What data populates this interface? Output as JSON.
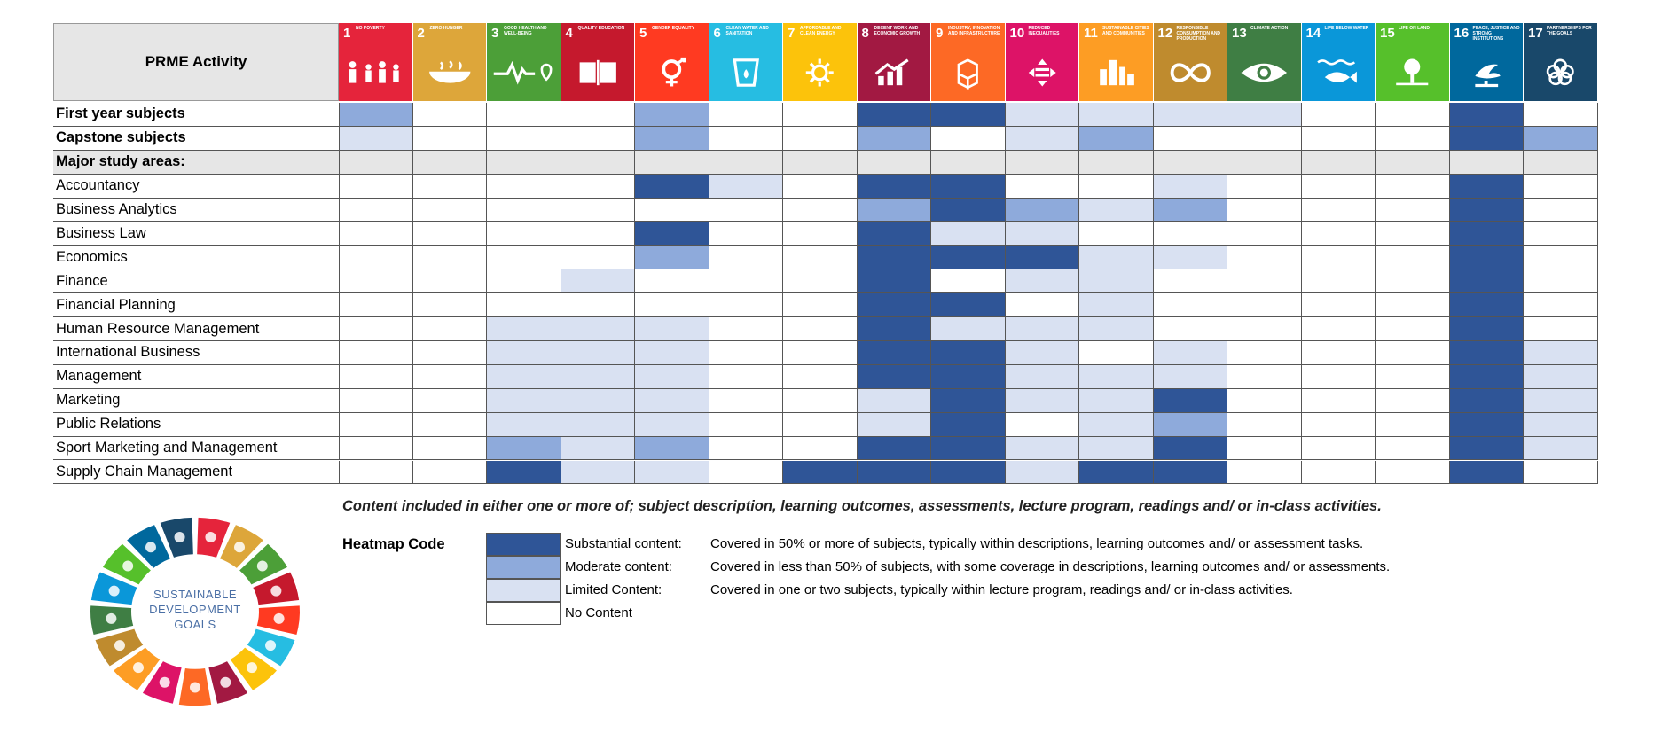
{
  "table": {
    "header_label": "PRME Activity"
  },
  "sdgs": [
    {
      "num": "1",
      "name": "No Poverty",
      "color": "#e5243b",
      "icon": "people-icon"
    },
    {
      "num": "2",
      "name": "Zero Hunger",
      "color": "#dda63a",
      "icon": "bowl-icon"
    },
    {
      "num": "3",
      "name": "Good Health and Well-being",
      "color": "#4c9f38",
      "icon": "heartbeat-icon"
    },
    {
      "num": "4",
      "name": "Quality Education",
      "color": "#c5192d",
      "icon": "book-icon"
    },
    {
      "num": "5",
      "name": "Gender Equality",
      "color": "#ff3a21",
      "icon": "gender-icon"
    },
    {
      "num": "6",
      "name": "Clean Water and Sanitation",
      "color": "#26bde2",
      "icon": "water-glass-icon"
    },
    {
      "num": "7",
      "name": "Affordable and Clean Energy",
      "color": "#fcc30b",
      "icon": "sun-icon"
    },
    {
      "num": "8",
      "name": "Decent Work and Economic Growth",
      "color": "#a21942",
      "icon": "growth-chart-icon"
    },
    {
      "num": "9",
      "name": "Industry, Innovation and Infrastructure",
      "color": "#fd6925",
      "icon": "cubes-icon"
    },
    {
      "num": "10",
      "name": "Reduced Inequalities",
      "color": "#dd1367",
      "icon": "equality-icon"
    },
    {
      "num": "11",
      "name": "Sustainable Cities and Communities",
      "color": "#fd9d24",
      "icon": "city-icon"
    },
    {
      "num": "12",
      "name": "Responsible Consumption and Production",
      "color": "#bf8b2e",
      "icon": "infinity-icon"
    },
    {
      "num": "13",
      "name": "Climate Action",
      "color": "#3f7e44",
      "icon": "eye-globe-icon"
    },
    {
      "num": "14",
      "name": "Life Below Water",
      "color": "#0a97d9",
      "icon": "fish-icon"
    },
    {
      "num": "15",
      "name": "Life on Land",
      "color": "#56c02b",
      "icon": "tree-icon"
    },
    {
      "num": "16",
      "name": "Peace, Justice and Strong Institutions",
      "color": "#00689d",
      "icon": "dove-icon"
    },
    {
      "num": "17",
      "name": "Partnerships for the Goals",
      "color": "#19486a",
      "icon": "rings-icon"
    }
  ],
  "chart_data": {
    "type": "heatmap",
    "levels": [
      "No Content",
      "Limited Content",
      "Moderate content",
      "Substantial content"
    ],
    "level_colors": [
      "#ffffff",
      "#d9e1f2",
      "#8eaadb",
      "#2f5597"
    ],
    "section_color": "#e6e6e6",
    "columns": [
      "1",
      "2",
      "3",
      "4",
      "5",
      "6",
      "7",
      "8",
      "9",
      "10",
      "11",
      "12",
      "13",
      "14",
      "15",
      "16",
      "17"
    ],
    "rows": [
      {
        "label": "First year subjects",
        "bold": true,
        "values": [
          2,
          0,
          0,
          0,
          2,
          0,
          0,
          3,
          3,
          1,
          1,
          1,
          1,
          0,
          0,
          3,
          0
        ]
      },
      {
        "label": "Capstone subjects",
        "bold": true,
        "values": [
          1,
          0,
          0,
          0,
          2,
          0,
          0,
          2,
          0,
          1,
          2,
          0,
          0,
          0,
          0,
          3,
          2
        ]
      },
      {
        "label": "Major study areas:",
        "bold": true,
        "section": true,
        "values": []
      },
      {
        "label": "Accountancy",
        "values": [
          0,
          0,
          0,
          0,
          3,
          1,
          0,
          3,
          3,
          0,
          0,
          1,
          0,
          0,
          0,
          3,
          0
        ]
      },
      {
        "label": "Business Analytics",
        "values": [
          0,
          0,
          0,
          0,
          0,
          0,
          0,
          2,
          3,
          2,
          1,
          2,
          0,
          0,
          0,
          3,
          0
        ]
      },
      {
        "label": "Business Law",
        "values": [
          0,
          0,
          0,
          0,
          3,
          0,
          0,
          3,
          1,
          1,
          0,
          0,
          0,
          0,
          0,
          3,
          0
        ]
      },
      {
        "label": "Economics",
        "values": [
          0,
          0,
          0,
          0,
          2,
          0,
          0,
          3,
          3,
          3,
          1,
          1,
          0,
          0,
          0,
          3,
          0
        ]
      },
      {
        "label": "Finance",
        "values": [
          0,
          0,
          0,
          1,
          0,
          0,
          0,
          3,
          0,
          1,
          1,
          0,
          0,
          0,
          0,
          3,
          0
        ]
      },
      {
        "label": "Financial Planning",
        "values": [
          0,
          0,
          0,
          0,
          0,
          0,
          0,
          3,
          3,
          0,
          1,
          0,
          0,
          0,
          0,
          3,
          0
        ]
      },
      {
        "label": "Human Resource Management",
        "values": [
          0,
          0,
          1,
          1,
          1,
          0,
          0,
          3,
          1,
          1,
          1,
          0,
          0,
          0,
          0,
          3,
          0
        ]
      },
      {
        "label": "International Business",
        "values": [
          0,
          0,
          1,
          1,
          1,
          0,
          0,
          3,
          3,
          1,
          0,
          1,
          0,
          0,
          0,
          3,
          1
        ]
      },
      {
        "label": "Management",
        "values": [
          0,
          0,
          1,
          1,
          1,
          0,
          0,
          3,
          3,
          1,
          1,
          1,
          0,
          0,
          0,
          3,
          1
        ]
      },
      {
        "label": "Marketing",
        "values": [
          0,
          0,
          1,
          1,
          1,
          0,
          0,
          1,
          3,
          1,
          1,
          3,
          0,
          0,
          0,
          3,
          1
        ]
      },
      {
        "label": "Public Relations",
        "values": [
          0,
          0,
          1,
          1,
          1,
          0,
          0,
          1,
          3,
          0,
          1,
          2,
          0,
          0,
          0,
          3,
          1
        ]
      },
      {
        "label": "Sport Marketing and Management",
        "values": [
          0,
          0,
          2,
          1,
          2,
          0,
          0,
          3,
          3,
          1,
          1,
          3,
          0,
          0,
          0,
          3,
          1
        ]
      },
      {
        "label": "Supply Chain Management",
        "values": [
          0,
          0,
          3,
          1,
          1,
          0,
          3,
          3,
          3,
          1,
          3,
          3,
          0,
          0,
          0,
          3,
          0
        ]
      }
    ]
  },
  "caption": "Content included in either one or more of; subject description, learning outcomes, assessments, lecture program, readings and/ or in-class activities.",
  "legend": {
    "title": "Heatmap Code",
    "items": [
      {
        "label": "Substantial content:",
        "desc": "Covered in 50% or more of subjects, typically within descriptions, learning outcomes and/ or assessment tasks.",
        "color": "#2f5597"
      },
      {
        "label": "Moderate content:",
        "desc": "Covered in less than 50% of subjects, with some coverage in descriptions, learning outcomes and/ or assessments.",
        "color": "#8eaadb"
      },
      {
        "label": "Limited Content:",
        "desc": "Covered in one or two subjects, typically within lecture program, readings and/ or in-class activities.",
        "color": "#d9e1f2"
      },
      {
        "label": "No Content",
        "desc": "",
        "color": "#ffffff"
      }
    ]
  },
  "wheel": {
    "line1": "SUSTAINABLE",
    "line2": "DEVELOPMENT",
    "line3": "GOALS"
  }
}
